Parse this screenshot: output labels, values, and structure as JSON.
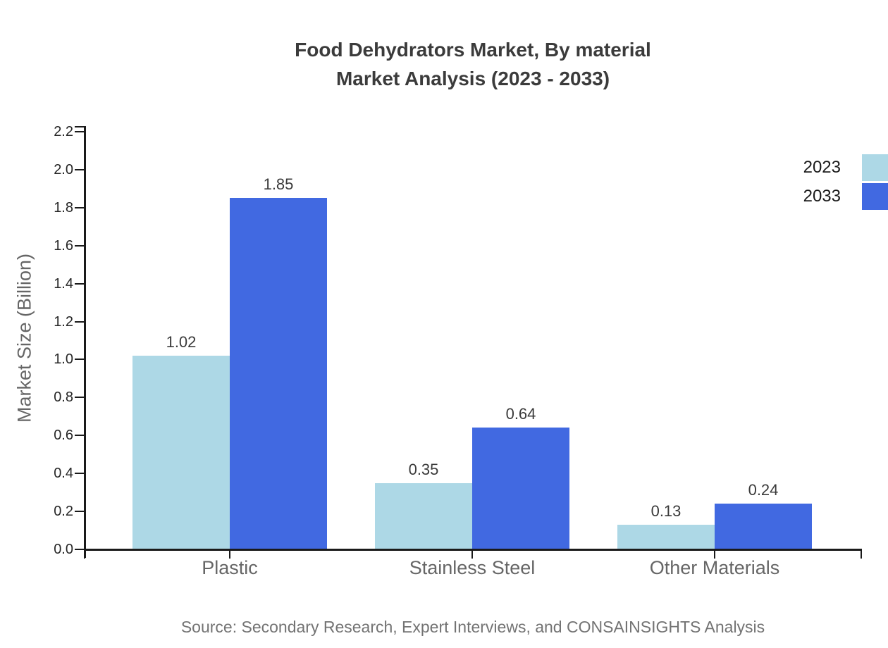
{
  "chart": {
    "title_line1": "Food Dehydrators Market, By material",
    "title_line2": "Market Analysis (2023 - 2033)",
    "source": "Source: Secondary Research, Expert Interviews, and CONSAINSIGHTS Analysis"
  },
  "chart_data": {
    "type": "bar",
    "title": "Food Dehydrators Market, By material — Market Analysis (2023 - 2033)",
    "categories": [
      "Plastic",
      "Stainless Steel",
      "Other Materials"
    ],
    "series": [
      {
        "name": "2023",
        "color": "#ADD8E6",
        "values": [
          1.02,
          0.35,
          0.13
        ]
      },
      {
        "name": "2033",
        "color": "#4169E1",
        "values": [
          1.85,
          0.64,
          0.24
        ]
      }
    ],
    "xlabel": "",
    "ylabel": "Market Size (Billion)",
    "ylim": [
      0,
      2.2
    ],
    "ytick_step": 0.2,
    "grid": false,
    "legend_position": "top-right",
    "value_labels": true,
    "axis_color": "#1a1a1a",
    "source_note": "Source: Secondary Research, Expert Interviews, and CONSAINSIGHTS Analysis"
  }
}
